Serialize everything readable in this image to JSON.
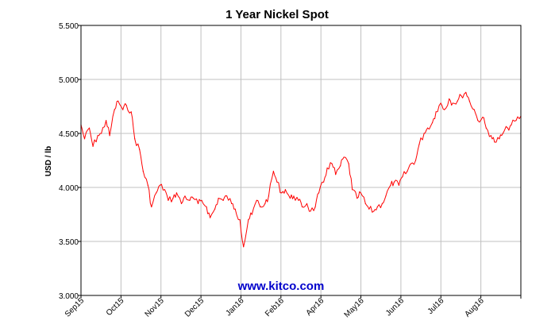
{
  "colors": {
    "line": "#ff0000",
    "grid": "#c0c0c0",
    "axis": "#000000",
    "watermark": "#0000cc",
    "background": "#ffffff"
  },
  "chart_data": {
    "type": "line",
    "title": "1 Year Nickel Spot",
    "xlabel": "",
    "ylabel": "USD / lb",
    "ylim": [
      3.0,
      5.5
    ],
    "y_ticks": [
      "3.000",
      "3.500",
      "4.000",
      "4.500",
      "5.000",
      "5.500"
    ],
    "x_ticks": [
      "Sep15",
      "Oct15",
      "Nov15",
      "Dec15",
      "Jan16",
      "Feb16",
      "Apr16",
      "May16",
      "Jun16",
      "Jul16",
      "Aug16"
    ],
    "grid": true,
    "legend": "none",
    "watermark": "www.kitco.com",
    "x_range": [
      "2015-09-14",
      "2016-09-16"
    ],
    "series": [
      {
        "x": [
          "2015-09-14",
          "2015-09-17",
          "2015-09-21",
          "2015-09-24",
          "2015-09-28",
          "2015-10-01",
          "2015-10-05",
          "2015-10-08",
          "2015-10-12",
          "2015-10-15",
          "2015-10-19",
          "2015-10-22",
          "2015-10-26",
          "2015-10-29",
          "2015-11-02",
          "2015-11-05",
          "2015-11-09",
          "2015-11-12",
          "2015-11-16",
          "2015-11-19",
          "2015-11-23",
          "2015-11-26",
          "2015-11-30",
          "2015-12-03",
          "2015-12-07",
          "2015-12-10",
          "2015-12-14",
          "2015-12-17",
          "2015-12-21",
          "2015-12-24",
          "2015-12-28",
          "2015-12-31",
          "2016-01-04",
          "2016-01-07",
          "2016-01-11",
          "2016-01-14",
          "2016-01-18",
          "2016-01-21",
          "2016-01-25",
          "2016-01-28",
          "2016-02-01",
          "2016-02-04",
          "2016-02-08",
          "2016-02-11",
          "2016-02-15",
          "2016-02-18",
          "2016-02-22",
          "2016-02-25",
          "2016-02-29",
          "2016-03-03",
          "2016-03-07",
          "2016-03-10",
          "2016-03-14",
          "2016-03-17",
          "2016-03-21",
          "2016-03-24",
          "2016-03-28",
          "2016-03-31",
          "2016-04-04",
          "2016-04-07",
          "2016-04-11",
          "2016-04-14",
          "2016-04-18",
          "2016-04-21",
          "2016-04-25",
          "2016-04-28",
          "2016-05-02",
          "2016-05-05",
          "2016-05-09",
          "2016-05-12",
          "2016-05-16",
          "2016-05-19",
          "2016-05-23",
          "2016-05-26",
          "2016-05-30",
          "2016-06-02",
          "2016-06-06",
          "2016-06-09",
          "2016-06-13",
          "2016-06-16",
          "2016-06-20",
          "2016-06-23",
          "2016-06-27",
          "2016-06-30",
          "2016-07-04",
          "2016-07-07",
          "2016-07-11",
          "2016-07-14",
          "2016-07-18",
          "2016-07-21",
          "2016-07-25",
          "2016-07-28",
          "2016-08-01",
          "2016-08-04",
          "2016-08-08",
          "2016-08-11",
          "2016-08-15",
          "2016-08-18",
          "2016-08-22",
          "2016-08-25",
          "2016-08-29",
          "2016-09-01",
          "2016-09-05",
          "2016-09-08",
          "2016-09-12",
          "2016-09-16"
        ],
        "values": [
          4.58,
          4.45,
          4.55,
          4.38,
          4.48,
          4.5,
          4.62,
          4.48,
          4.72,
          4.8,
          4.72,
          4.76,
          4.7,
          4.45,
          4.35,
          4.15,
          4.02,
          3.82,
          3.95,
          4.02,
          3.98,
          3.88,
          3.9,
          3.95,
          3.85,
          3.92,
          3.88,
          3.9,
          3.85,
          3.88,
          3.82,
          3.72,
          3.8,
          3.9,
          3.88,
          3.92,
          3.85,
          3.8,
          3.7,
          3.45,
          3.7,
          3.75,
          3.88,
          3.82,
          3.85,
          3.92,
          4.15,
          4.05,
          3.95,
          3.98,
          3.9,
          3.92,
          3.88,
          3.82,
          3.85,
          3.78,
          3.82,
          3.95,
          4.05,
          4.18,
          4.22,
          4.12,
          4.2,
          4.28,
          4.22,
          3.98,
          3.9,
          3.95,
          3.85,
          3.8,
          3.78,
          3.82,
          3.85,
          3.92,
          4.02,
          4.05,
          4.02,
          4.1,
          4.15,
          4.22,
          4.25,
          4.4,
          4.5,
          4.55,
          4.6,
          4.7,
          4.78,
          4.72,
          4.82,
          4.78,
          4.8,
          4.85,
          4.88,
          4.8,
          4.72,
          4.62,
          4.65,
          4.55,
          4.48,
          4.42,
          4.45,
          4.5,
          4.55,
          4.58,
          4.62,
          4.66
        ]
      }
    ]
  }
}
